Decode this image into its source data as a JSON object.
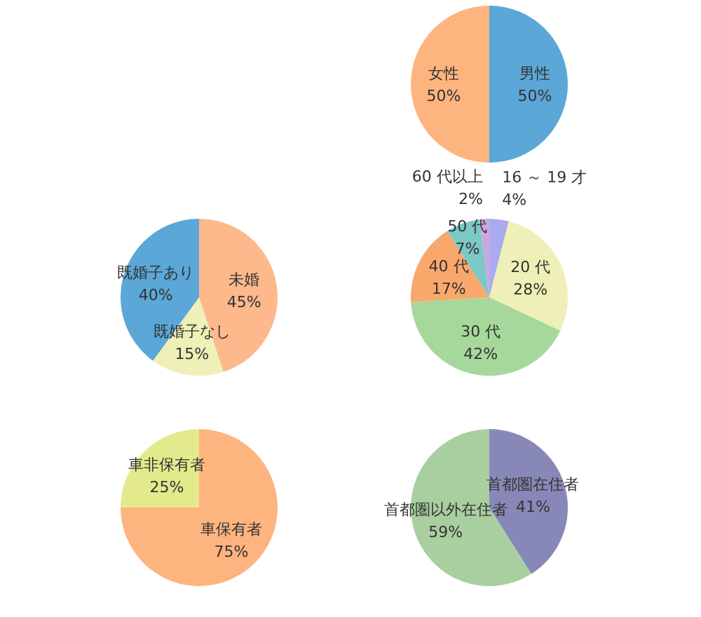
{
  "chart_data": [
    {
      "type": "pie",
      "categories": [
        "男性",
        "女性"
      ],
      "values": [
        50,
        50
      ],
      "colors": [
        "#5ba7d8",
        "#fdb47f"
      ],
      "value_labels": [
        "50%",
        "50%"
      ]
    },
    {
      "type": "pie",
      "categories": [
        "未婚",
        "既婚子なし",
        "既婚子あり"
      ],
      "values": [
        45,
        15,
        40
      ],
      "colors": [
        "#fdb88c",
        "#eef0b8",
        "#5ba7d8"
      ],
      "value_labels": [
        "45%",
        "15%",
        "40%"
      ]
    },
    {
      "type": "pie",
      "categories": [
        "16 ～ 19 才",
        "20 代",
        "30 代",
        "40 代",
        "50 代",
        "60 代以上"
      ],
      "values": [
        4,
        28,
        42,
        17,
        7,
        2
      ],
      "colors": [
        "#aaaaee",
        "#eef0b8",
        "#a6d89b",
        "#f9a86c",
        "#7cc8c4",
        "#cba7e2"
      ],
      "value_labels": [
        "4%",
        "28%",
        "42%",
        "17%",
        "7%",
        "2%"
      ]
    },
    {
      "type": "pie",
      "categories": [
        "車保有者",
        "車非保有者"
      ],
      "values": [
        75,
        25
      ],
      "colors": [
        "#fdb47f",
        "#e2ea8c"
      ],
      "value_labels": [
        "75%",
        "25%"
      ]
    },
    {
      "type": "pie",
      "categories": [
        "首都圏在住者",
        "首都圏以外在住者"
      ],
      "values": [
        41,
        59
      ],
      "colors": [
        "#8888b8",
        "#a9cfa0"
      ],
      "value_labels": [
        "41%",
        "59%"
      ]
    }
  ]
}
